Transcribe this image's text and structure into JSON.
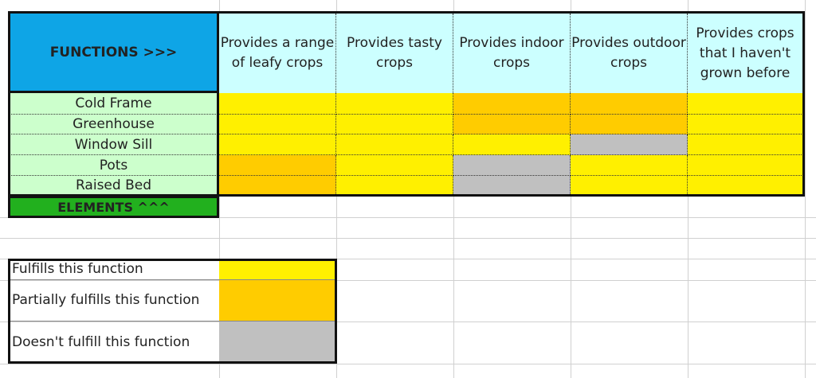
{
  "functions_label": "FUNCTIONS >>>",
  "elements_label": "ELEMENTS ^^^",
  "functions": [
    "Provides a range of leafy crops",
    "Provides tasty crops",
    "Provides indoor crops",
    "Provides outdoor crops",
    "Provides crops that I haven't grown before"
  ],
  "colors": {
    "full": "#fff000",
    "partial": "#ffcc00",
    "none": "#c0c0c0",
    "functions_bg": "#0ea5e6",
    "elements_bg": "#22b01e"
  },
  "elements": [
    {
      "name": "Cold Frame",
      "ratings": [
        "full",
        "full",
        "partial",
        "partial",
        "full"
      ]
    },
    {
      "name": "Greenhouse",
      "ratings": [
        "full",
        "full",
        "partial",
        "partial",
        "full"
      ]
    },
    {
      "name": "Window Sill",
      "ratings": [
        "full",
        "full",
        "full",
        "none",
        "full"
      ]
    },
    {
      "name": "Pots",
      "ratings": [
        "partial",
        "full",
        "none",
        "full",
        "full"
      ]
    },
    {
      "name": "Raised Bed",
      "ratings": [
        "partial",
        "full",
        "none",
        "full",
        "full"
      ]
    }
  ],
  "legend": [
    {
      "label": "Fulfills this function",
      "level": "full"
    },
    {
      "label": "Partially fulfills this function",
      "level": "partial"
    },
    {
      "label": "Doesn't fulfill this function",
      "level": "none"
    }
  ]
}
